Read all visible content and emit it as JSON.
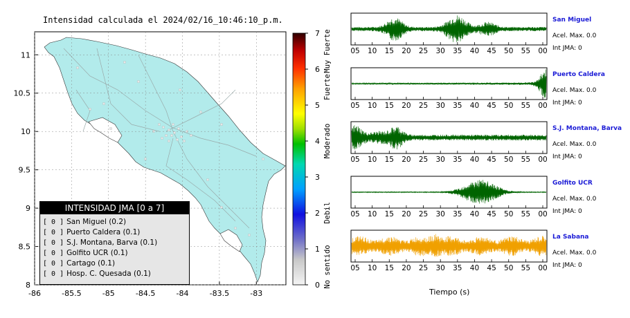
{
  "title": "Intensidad calculada el 2024/02/16_10:46:10_p.m.",
  "map": {
    "x_ticks": [
      "-86",
      "-85.5",
      "-85",
      "-84.5",
      "-84",
      "-83.5",
      "-83"
    ],
    "y_ticks": [
      "11",
      "10.5",
      "10",
      "9.5",
      "9",
      "8.5",
      "8"
    ],
    "xlim": [
      -86,
      -82.6
    ],
    "ylim": [
      8,
      11.3
    ],
    "land_color": "#b2ebeb"
  },
  "colorbar": {
    "ticks": [
      "0",
      "1",
      "2",
      "3",
      "4",
      "5",
      "6",
      "7"
    ],
    "labels": [
      "No sentido",
      "Debil",
      "Moderado",
      "Fuerte",
      "Muy Fuerte"
    ]
  },
  "legend": {
    "header": "INTENSIDAD JMA [0 a 7]",
    "items": [
      {
        "level": "[ 0 ]",
        "label": "San Miguel (0.2)"
      },
      {
        "level": "[ 0 ]",
        "label": "Puerto Caldera (0.1)"
      },
      {
        "level": "[ 0 ]",
        "label": "S.J. Montana, Barva (0.1)"
      },
      {
        "level": "[ 0 ]",
        "label": "Golfito UCR (0.1)"
      },
      {
        "level": "[ 0 ]",
        "label": "Cartago (0.1)"
      },
      {
        "level": "[ 0 ]",
        "label": "Hosp. C. Quesada (0.1)"
      }
    ]
  },
  "stations": [
    {
      "name": "San Miguel",
      "acel": "Acel. Max. 0.0",
      "jma": "Int JMA: 0",
      "color": "#006400"
    },
    {
      "name": "Puerto Caldera",
      "acel": "Acel. Max. 0.0",
      "jma": "Int JMA: 0",
      "color": "#006400"
    },
    {
      "name": "S.J. Montana, Barva",
      "acel": "Acel. Max. 0.0",
      "jma": "Int JMA: 0",
      "color": "#006400"
    },
    {
      "name": "Golfito UCR",
      "acel": "Acel. Max. 0.0",
      "jma": "Int JMA: 0",
      "color": "#006400"
    },
    {
      "name": "La Sabana",
      "acel": "Acel. Max. 0.0",
      "jma": "Int JMA: 0",
      "color": "#f0a000"
    }
  ],
  "chart_data": {
    "type": "line",
    "x_tick_labels": [
      "05",
      "10",
      "15",
      "20",
      "25",
      "30",
      "35",
      "40",
      "45",
      "50",
      "55",
      "00"
    ],
    "xlabel": "Tiempo (s)"
  }
}
